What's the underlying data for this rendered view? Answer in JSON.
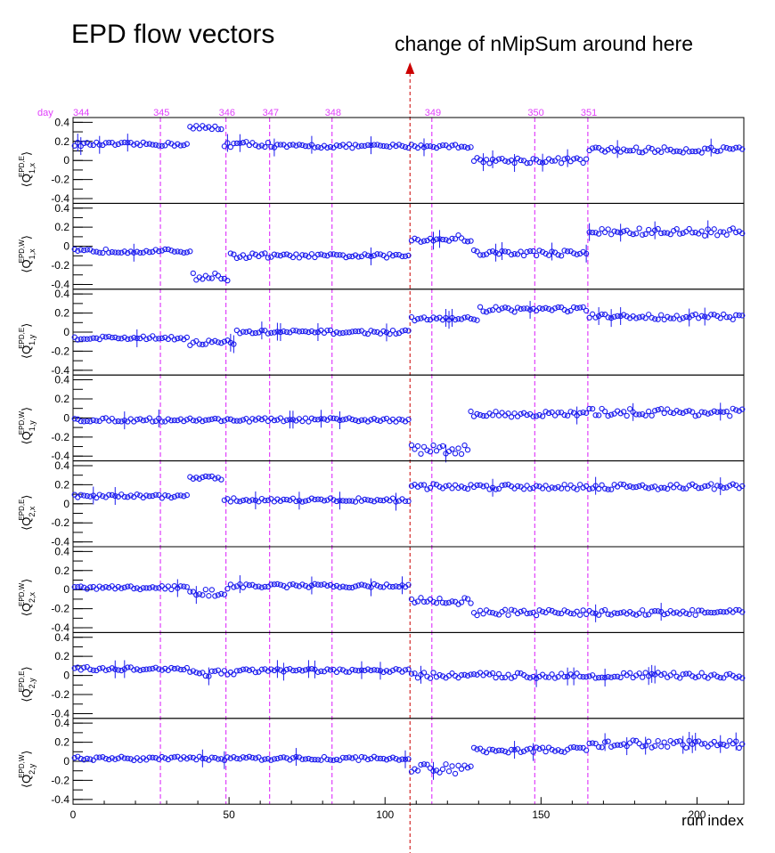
{
  "title": "EPD flow vectors",
  "annotation": "change of nMipSum around here",
  "colors": {
    "points": "#1a1aee",
    "day_lines": "#e040fb",
    "annotation_arrow": "#cc0000",
    "frame": "#000000"
  },
  "chart_data": {
    "type": "scatter",
    "xlabel": "run index",
    "xlim": [
      0,
      215
    ],
    "x_ticks": [
      "0",
      "50",
      "100",
      "150",
      "200"
    ],
    "ylim": [
      -0.45,
      0.45
    ],
    "y_ticks": [
      "0.4",
      "0.2",
      "0",
      "-0.2",
      "-0.4"
    ],
    "day_label": "day",
    "day_markers": [
      {
        "label": "344",
        "x": 0
      },
      {
        "label": "345",
        "x": 28
      },
      {
        "label": "346",
        "x": 49
      },
      {
        "label": "347",
        "x": 63
      },
      {
        "label": "348",
        "x": 83
      },
      {
        "label": "349",
        "x": 115
      },
      {
        "label": "350",
        "x": 148
      },
      {
        "label": "351",
        "x": 165
      }
    ],
    "annotation_x": 108,
    "series": [
      {
        "name": "⟨Q_1,x^EPD,E⟩",
        "sub": "1,x",
        "sup": "EPD,E",
        "segments": [
          [
            0,
            37,
            0.17,
            0.02
          ],
          [
            37,
            48,
            0.34,
            0.03
          ],
          [
            48,
            63,
            0.17,
            0.03
          ],
          [
            63,
            108,
            0.15,
            0.02
          ],
          [
            108,
            128,
            0.15,
            0.02
          ],
          [
            128,
            165,
            0.0,
            0.03
          ],
          [
            165,
            215,
            0.11,
            0.03
          ]
        ]
      },
      {
        "name": "⟨Q_1,x^EPD,W⟩",
        "sub": "1,x",
        "sup": "EPD,W",
        "segments": [
          [
            0,
            38,
            -0.05,
            0.02
          ],
          [
            38,
            50,
            -0.32,
            0.04
          ],
          [
            50,
            63,
            -0.1,
            0.03
          ],
          [
            63,
            108,
            -0.1,
            0.02
          ],
          [
            108,
            128,
            0.08,
            0.04
          ],
          [
            128,
            165,
            -0.07,
            0.03
          ],
          [
            165,
            215,
            0.15,
            0.04
          ]
        ]
      },
      {
        "name": "⟨Q_1,y^EPD,E⟩",
        "sub": "1,y",
        "sup": "EPD,E",
        "segments": [
          [
            0,
            37,
            -0.06,
            0.02
          ],
          [
            37,
            52,
            -0.11,
            0.03
          ],
          [
            52,
            108,
            0.0,
            0.02
          ],
          [
            108,
            130,
            0.14,
            0.02
          ],
          [
            130,
            165,
            0.24,
            0.03
          ],
          [
            165,
            215,
            0.16,
            0.03
          ]
        ]
      },
      {
        "name": "⟨Q_1,y^EPD,W⟩",
        "sub": "1,y",
        "sup": "EPD,W",
        "segments": [
          [
            0,
            108,
            -0.02,
            0.02
          ],
          [
            108,
            127,
            -0.33,
            0.05
          ],
          [
            127,
            165,
            0.04,
            0.03
          ],
          [
            165,
            215,
            0.06,
            0.04
          ]
        ]
      },
      {
        "name": "⟨Q_2,x^EPD,E⟩",
        "sub": "2,x",
        "sup": "EPD,E",
        "segments": [
          [
            0,
            37,
            0.08,
            0.02
          ],
          [
            37,
            48,
            0.27,
            0.02
          ],
          [
            48,
            108,
            0.04,
            0.02
          ],
          [
            108,
            215,
            0.18,
            0.03
          ]
        ]
      },
      {
        "name": "⟨Q_2,x^EPD,W⟩",
        "sub": "2,x",
        "sup": "EPD,W",
        "segments": [
          [
            0,
            37,
            0.02,
            0.02
          ],
          [
            37,
            50,
            -0.03,
            0.04
          ],
          [
            50,
            108,
            0.04,
            0.02
          ],
          [
            108,
            128,
            -0.12,
            0.04
          ],
          [
            128,
            215,
            -0.24,
            0.03
          ]
        ]
      },
      {
        "name": "⟨Q_2,y^EPD,E⟩",
        "sub": "2,y",
        "sup": "EPD,E",
        "segments": [
          [
            0,
            37,
            0.07,
            0.02
          ],
          [
            37,
            52,
            0.03,
            0.04
          ],
          [
            52,
            108,
            0.05,
            0.02
          ],
          [
            108,
            215,
            0.0,
            0.03
          ]
        ]
      },
      {
        "name": "⟨Q_2,y^EPD,W⟩",
        "sub": "2,y",
        "sup": "EPD,W",
        "segments": [
          [
            0,
            108,
            0.03,
            0.02
          ],
          [
            108,
            128,
            -0.08,
            0.05
          ],
          [
            128,
            165,
            0.12,
            0.03
          ],
          [
            165,
            215,
            0.18,
            0.04
          ]
        ]
      }
    ]
  }
}
